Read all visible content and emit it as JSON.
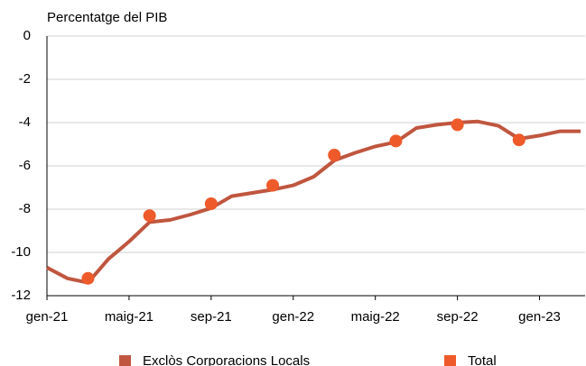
{
  "chart_data": {
    "type": "line",
    "y_label": "Percentatge del PIB",
    "categories": [
      "gen-21",
      null,
      null,
      null,
      "maig-21",
      null,
      null,
      null,
      "sep-21",
      null,
      null,
      null,
      "gen-22",
      null,
      null,
      null,
      "maig-22",
      null,
      null,
      null,
      "sep-22",
      null,
      null,
      null,
      "gen-23",
      null,
      null
    ],
    "series": [
      {
        "name": "Exclòs Corporacions Locals",
        "color": "#c0563f",
        "style": "line",
        "values": [
          -10.7,
          -11.2,
          -11.4,
          -10.3,
          -9.5,
          -8.6,
          -8.5,
          -8.25,
          -7.95,
          -7.4,
          -7.25,
          -7.1,
          -6.9,
          -6.5,
          -5.75,
          -5.4,
          -5.1,
          -4.9,
          -4.25,
          -4.1,
          -4.0,
          -3.95,
          -4.15,
          -4.75,
          -4.6,
          -4.4,
          -4.4
        ]
      },
      {
        "name": "Total",
        "color": "#ee5a2a",
        "style": "marker",
        "values": [
          null,
          null,
          -11.2,
          null,
          null,
          -8.3,
          null,
          null,
          -7.75,
          null,
          null,
          -6.9,
          null,
          null,
          -5.5,
          null,
          null,
          -4.85,
          null,
          null,
          -4.1,
          null,
          null,
          -4.8,
          null,
          null,
          null
        ]
      }
    ],
    "ylim": [
      -12,
      0
    ],
    "yticks": [
      0,
      -2,
      -4,
      -6,
      -8,
      -10,
      -12
    ],
    "grid": true,
    "legend": "bottom"
  }
}
